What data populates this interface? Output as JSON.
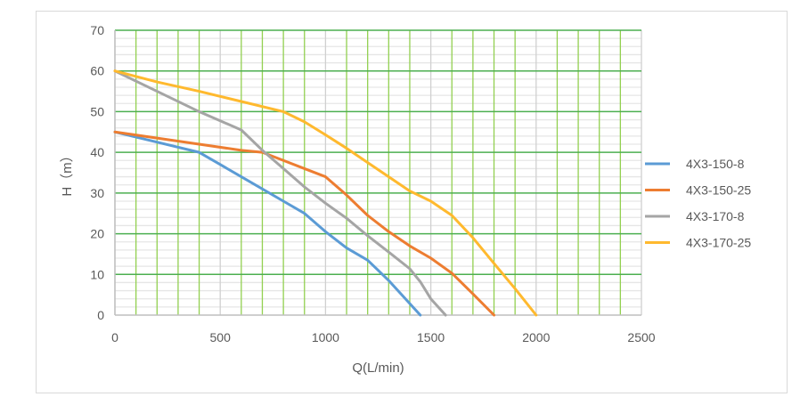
{
  "chart_data": {
    "type": "line",
    "title": "",
    "xlabel": "Q(L/min)",
    "ylabel": "H（m）",
    "xlim": [
      0,
      2500
    ],
    "ylim": [
      0,
      70
    ],
    "xticks": [
      0,
      500,
      1000,
      1500,
      2000,
      2500
    ],
    "yticks": [
      0,
      10,
      20,
      30,
      40,
      50,
      60,
      70
    ],
    "grid": true,
    "legend_position": "right",
    "series": [
      {
        "name": "4X3-150-8",
        "color": "#5b9bd5",
        "x": [
          0,
          200,
          400,
          500,
          600,
          800,
          900,
          1000,
          1100,
          1200,
          1250,
          1300,
          1450
        ],
        "y": [
          45,
          42.5,
          40,
          37,
          34,
          28,
          25,
          20.5,
          16.5,
          13.5,
          11,
          8.5,
          0
        ]
      },
      {
        "name": "4X3-150-25",
        "color": "#ed7d31",
        "x": [
          0,
          200,
          400,
          600,
          700,
          800,
          900,
          1000,
          1100,
          1200,
          1300,
          1400,
          1500,
          1600,
          1700,
          1800
        ],
        "y": [
          45,
          43.5,
          42,
          40.5,
          40,
          38,
          36,
          34,
          29.5,
          24.5,
          20.5,
          17,
          14,
          10.3,
          5.2,
          0
        ]
      },
      {
        "name": "4X3-170-8",
        "color": "#a5a5a5",
        "x": [
          0,
          200,
          400,
          600,
          700,
          800,
          900,
          1000,
          1100,
          1200,
          1300,
          1400,
          1450,
          1500,
          1570
        ],
        "y": [
          60,
          55,
          50,
          45.5,
          40.5,
          36,
          31.5,
          27.5,
          23.8,
          19.5,
          15.5,
          11.4,
          8.2,
          4,
          0
        ]
      },
      {
        "name": "4X3-170-25",
        "color": "#ffb92e",
        "x": [
          0,
          200,
          400,
          600,
          800,
          900,
          1000,
          1100,
          1200,
          1300,
          1400,
          1500,
          1600,
          1700,
          1800,
          1900,
          2000
        ],
        "y": [
          60,
          57.3,
          55,
          52.5,
          50,
          47.5,
          44.3,
          41,
          37.5,
          34,
          30.5,
          28,
          24.5,
          19,
          12.7,
          6.5,
          0
        ]
      }
    ]
  }
}
